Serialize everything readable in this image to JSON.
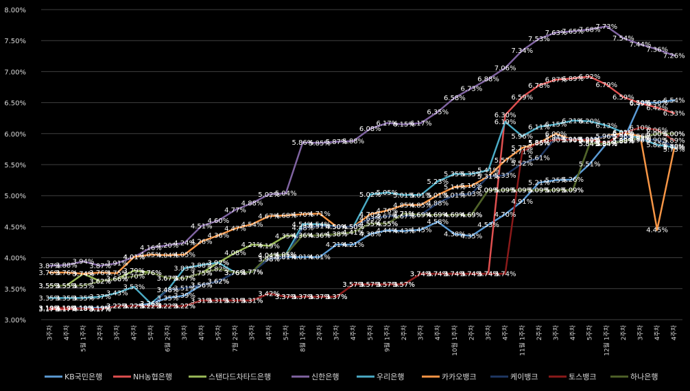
{
  "chart_data": {
    "type": "line",
    "title": "",
    "xlabel": "",
    "ylabel": "",
    "ylim": [
      0.03,
      0.08
    ],
    "y_tick_labels": [
      "3.00%",
      "3.50%",
      "4.00%",
      "4.50%",
      "5.00%",
      "5.50%",
      "6.00%",
      "6.50%",
      "7.00%",
      "7.50%",
      "8.00%"
    ],
    "grid": true,
    "legend_position": "bottom",
    "categories": [
      "3주차",
      "4주차",
      "5월 1주차",
      "2주차",
      "3주차",
      "4주차",
      "5주차",
      "6월 2주차",
      "3주차",
      "4주차",
      "5주차",
      "7월 2주차",
      "3주차",
      "4주차",
      "5주차",
      "8월 1주차",
      "2주차",
      "3주차",
      "4주차",
      "5주차",
      "9월 1주차",
      "2주차",
      "3주차",
      "4주차",
      "10월 1주차",
      "2주차",
      "3주차",
      "4주차",
      "11월 1주차",
      "2주차",
      "3주차",
      "4주차",
      "5주차",
      "12월 1주차",
      "2주차",
      "3주차",
      "4주차",
      "4주차"
    ],
    "series": [
      {
        "name": "KB국민은행",
        "color": "#5b9bd5",
        "values": [
          0.0319,
          0.0319,
          0.0319,
          0.0319,
          0.0322,
          0.0322,
          0.0326,
          0.0335,
          0.0339,
          0.0356,
          0.0362,
          0.0376,
          0.0377,
          0.0398,
          0.0401,
          0.0401,
          0.0401,
          0.0421,
          0.0421,
          0.0438,
          0.0444,
          0.0443,
          0.0445,
          0.0458,
          0.0438,
          0.0435,
          0.0453,
          0.047,
          0.0491,
          0.0521,
          0.0525,
          0.0526,
          0.0551,
          0.0584,
          0.0589,
          0.065,
          0.065,
          0.0654
        ]
      },
      {
        "name": "NH농협은행",
        "color": "#e05050",
        "values": [
          0.0317,
          0.0317,
          0.0318,
          0.0317,
          0.0322,
          0.0322,
          0.0322,
          0.0322,
          0.0322,
          0.0331,
          0.0331,
          0.0331,
          0.0331,
          0.0342,
          0.0337,
          0.0337,
          0.0337,
          0.0337,
          0.0357,
          0.0357,
          0.0357,
          0.0357,
          0.0374,
          0.0374,
          0.0374,
          0.0374,
          0.0374,
          0.063,
          0.0659,
          0.0678,
          0.0687,
          0.0689,
          0.0692,
          0.0679,
          0.0659,
          0.0649,
          0.0642,
          0.0633
        ]
      },
      {
        "name": "스탠다드차타드은행",
        "color": "#9bbb59",
        "values": [
          0.0355,
          0.0355,
          0.0374,
          0.0362,
          0.0366,
          0.0379,
          0.0376,
          0.0367,
          0.0367,
          0.0375,
          0.0392,
          0.0408,
          0.0421,
          0.0419,
          0.0435,
          0.0436,
          0.0436,
          0.0438,
          0.0441,
          0.0455,
          0.0455,
          0.0471,
          0.0469,
          0.0469,
          0.0469,
          0.0469,
          0.0509,
          0.0509,
          0.0509,
          0.0509,
          0.0509,
          0.0509,
          0.0584,
          0.0584,
          0.0588,
          0.0593,
          0.06,
          0.06
        ]
      },
      {
        "name": "신한은행",
        "color": "#8064a2",
        "values": [
          0.0387,
          0.0388,
          0.0394,
          0.0387,
          0.0391,
          0.0401,
          0.0416,
          0.042,
          0.0424,
          0.0451,
          0.046,
          0.0477,
          0.0488,
          0.0502,
          0.0504,
          0.0586,
          0.0585,
          0.0587,
          0.0588,
          0.0608,
          0.0617,
          0.0615,
          0.0617,
          0.0635,
          0.0658,
          0.0673,
          0.0688,
          0.0706,
          0.0734,
          0.0753,
          0.0763,
          0.0765,
          0.0768,
          0.0773,
          0.0754,
          0.0744,
          0.0736,
          0.0726
        ]
      },
      {
        "name": "우리은행",
        "color": "#4bacc6",
        "values": [
          0.0335,
          0.0335,
          0.0335,
          0.0337,
          0.0343,
          0.0353,
          0.0326,
          0.0348,
          0.0383,
          0.0388,
          0.0392,
          0.0376,
          0.0377,
          0.0404,
          0.0405,
          0.0454,
          0.0454,
          0.045,
          0.045,
          0.0502,
          0.0505,
          0.0501,
          0.0501,
          0.0523,
          0.0535,
          0.0535,
          0.0541,
          0.0619,
          0.0596,
          0.0611,
          0.0615,
          0.0621,
          0.062,
          0.0613,
          0.0602,
          0.0592,
          0.0582,
          0.0578
        ]
      },
      {
        "name": "카카오뱅크",
        "color": "#f79646",
        "values": [
          0.0376,
          0.0376,
          0.0374,
          0.0376,
          0.0375,
          0.0401,
          0.0405,
          0.0404,
          0.0405,
          0.0426,
          0.0436,
          0.0447,
          0.0454,
          0.0467,
          0.0468,
          0.047,
          0.0471,
          0.045,
          0.045,
          0.047,
          0.0476,
          0.0485,
          0.0485,
          0.0501,
          0.0514,
          0.0516,
          0.0531,
          0.0557,
          0.0577,
          0.0585,
          0.06,
          0.059,
          0.0589,
          0.0596,
          0.0601,
          0.0596,
          0.0445,
          0.0575
        ]
      },
      {
        "name": "케이뱅크",
        "color": "#1f3864",
        "values": [
          0.0319,
          0.0319,
          0.0318,
          0.0317,
          0.0322,
          0.0322,
          0.0322,
          0.0348,
          0.0351,
          0.0356,
          0.0362,
          0.0376,
          0.0377,
          0.0398,
          0.0401,
          0.0448,
          0.0451,
          0.045,
          0.045,
          0.0463,
          0.0467,
          0.0467,
          0.0469,
          0.0488,
          0.0501,
          0.0503,
          0.0531,
          0.0533,
          0.0552,
          0.0561,
          0.0594,
          0.0591,
          0.0591,
          0.0596,
          0.0596,
          0.059,
          0.059,
          0.058
        ]
      },
      {
        "name": "토스뱅크",
        "color": "#8b1a1a",
        "values": [
          0.0319,
          0.0319,
          0.0318,
          0.0317,
          0.0322,
          0.0322,
          0.0322,
          0.0322,
          0.0322,
          0.0331,
          0.0331,
          0.0331,
          0.0331,
          0.0342,
          0.0337,
          0.0337,
          0.0337,
          0.0337,
          0.0357,
          0.0357,
          0.0357,
          0.0357,
          0.0374,
          0.0374,
          0.0374,
          0.0374,
          0.0374,
          0.0374,
          0.0571,
          0.0586,
          0.059,
          0.059,
          0.059,
          0.0585,
          0.0601,
          0.061,
          0.0606,
          0.0589
        ]
      },
      {
        "name": "하나은행",
        "color": "#4f6228",
        "values": [
          0.0355,
          0.0355,
          0.0355,
          0.0362,
          0.0366,
          0.037,
          0.0376,
          0.0367,
          0.0367,
          0.0375,
          0.0382,
          0.0376,
          0.0377,
          0.0404,
          0.0405,
          0.0436,
          0.0436,
          0.0438,
          0.0441,
          0.0455,
          0.0455,
          0.0471,
          0.0469,
          0.0469,
          0.0469,
          0.0469,
          0.0509,
          0.0509,
          0.0509,
          0.0509,
          0.0509,
          0.0509,
          0.0584,
          0.0584,
          0.0588,
          0.0593,
          0.06,
          0.06
        ]
      }
    ]
  }
}
